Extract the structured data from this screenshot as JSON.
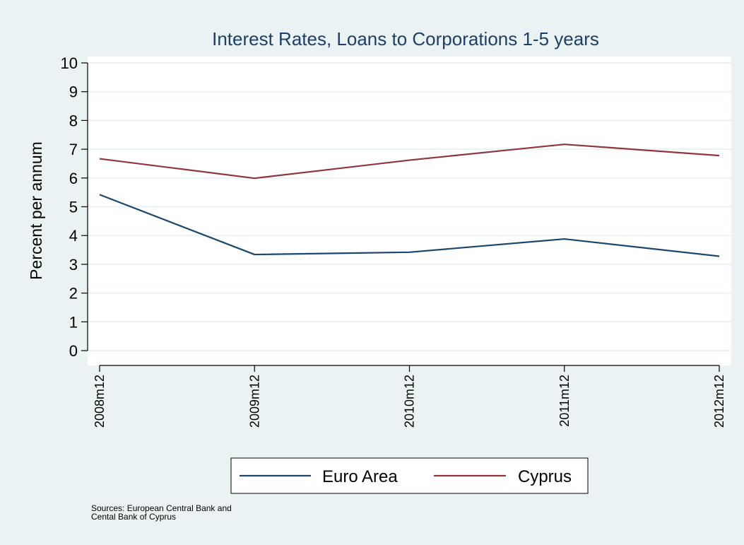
{
  "chart_data": {
    "type": "line",
    "title": "Interest Rates, Loans to Corporations 1-5 years",
    "ylabel": "Percent per annum",
    "xlabel": "",
    "categories": [
      "2008m12",
      "2009m12",
      "2010m12",
      "2011m12",
      "2012m12"
    ],
    "ylim": [
      0,
      10
    ],
    "yticks": [
      0,
      1,
      2,
      3,
      4,
      5,
      6,
      7,
      8,
      9,
      10
    ],
    "grid": true,
    "legend_position": "bottom",
    "series": [
      {
        "name": "Euro Area",
        "color": "#1a476f",
        "values": [
          5.42,
          3.34,
          3.42,
          3.88,
          3.28
        ]
      },
      {
        "name": "Cyprus",
        "color": "#90353b",
        "values": [
          6.67,
          5.99,
          6.62,
          7.17,
          6.78
        ]
      }
    ],
    "note": [
      "Sources: European Central Bank and",
      "Cental Bank of Cyprus"
    ]
  },
  "colors": {
    "background": "#eaf2f3",
    "plot_background": "#ffffff",
    "grid": "#eaf2f3",
    "title": "#1e3f66"
  }
}
